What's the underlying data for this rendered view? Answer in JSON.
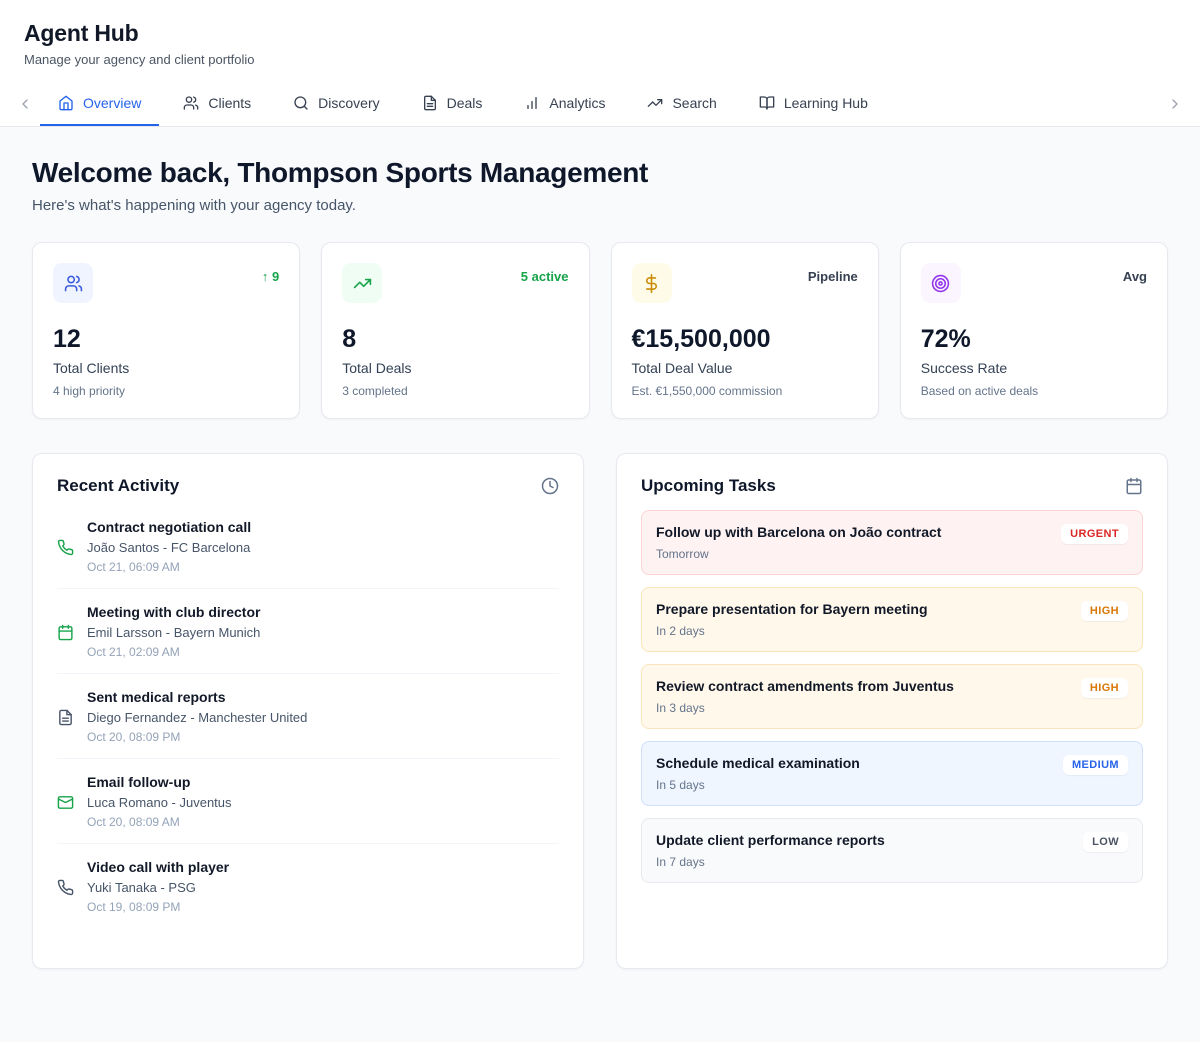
{
  "header": {
    "title": "Agent Hub",
    "subtitle": "Manage your agency and client portfolio"
  },
  "tabs": [
    {
      "label": "Overview",
      "icon": "home",
      "active": true
    },
    {
      "label": "Clients",
      "icon": "users",
      "active": false
    },
    {
      "label": "Discovery",
      "icon": "search",
      "active": false
    },
    {
      "label": "Deals",
      "icon": "file-text",
      "active": false
    },
    {
      "label": "Analytics",
      "icon": "bar-chart",
      "active": false
    },
    {
      "label": "Search",
      "icon": "trending-up",
      "active": false
    },
    {
      "label": "Learning Hub",
      "icon": "book-open",
      "active": false
    }
  ],
  "welcome": {
    "title": "Welcome back, Thompson Sports Management",
    "subtitle": "Here's what's happening with your agency today."
  },
  "stats": [
    {
      "icon": "users",
      "icon_bg": "#eff4ff",
      "icon_color": "#3b5bdb",
      "badge": "↑ 9",
      "badge_color": "#16a34a",
      "value": "12",
      "label": "Total Clients",
      "sub": "4 high priority"
    },
    {
      "icon": "trending-up",
      "icon_bg": "#f0fdf4",
      "icon_color": "#16a34a",
      "badge": "5 active",
      "badge_color": "#16a34a",
      "value": "8",
      "label": "Total Deals",
      "sub": "3 completed"
    },
    {
      "icon": "dollar-sign",
      "icon_bg": "#fefce8",
      "icon_color": "#ca8a04",
      "badge": "Pipeline",
      "badge_color": "#374151",
      "value": "€15,500,000",
      "label": "Total Deal Value",
      "sub": "Est. €1,550,000 commission"
    },
    {
      "icon": "target",
      "icon_bg": "#faf5ff",
      "icon_color": "#9333ea",
      "badge": "Avg",
      "badge_color": "#374151",
      "value": "72%",
      "label": "Success Rate",
      "sub": "Based on active deals"
    }
  ],
  "recent_activity": {
    "title": "Recent Activity",
    "header_icon": "clock",
    "items": [
      {
        "icon": "phone",
        "icon_color": "#16a34a",
        "title": "Contract negotiation call",
        "subtitle": "João Santos - FC Barcelona",
        "time": "Oct 21, 06:09 AM"
      },
      {
        "icon": "calendar",
        "icon_color": "#16a34a",
        "title": "Meeting with club director",
        "subtitle": "Emil Larsson - Bayern Munich",
        "time": "Oct 21, 02:09 AM"
      },
      {
        "icon": "file-text",
        "icon_color": "#475569",
        "title": "Sent medical reports",
        "subtitle": "Diego Fernandez - Manchester United",
        "time": "Oct 20, 08:09 PM"
      },
      {
        "icon": "mail",
        "icon_color": "#16a34a",
        "title": "Email follow-up",
        "subtitle": "Luca Romano - Juventus",
        "time": "Oct 20, 08:09 AM"
      },
      {
        "icon": "phone",
        "icon_color": "#475569",
        "title": "Video call with player",
        "subtitle": "Yuki Tanaka - PSG",
        "time": "Oct 19, 08:09 PM"
      }
    ]
  },
  "upcoming_tasks": {
    "title": "Upcoming Tasks",
    "header_icon": "calendar",
    "items": [
      {
        "title": "Follow up with Barcelona on João contract",
        "due": "Tomorrow",
        "priority": "URGENT"
      },
      {
        "title": "Prepare presentation for Bayern meeting",
        "due": "In 2 days",
        "priority": "HIGH"
      },
      {
        "title": "Review contract amendments from Juventus",
        "due": "In 3 days",
        "priority": "HIGH"
      },
      {
        "title": "Schedule medical examination",
        "due": "In 5 days",
        "priority": "MEDIUM"
      },
      {
        "title": "Update client performance reports",
        "due": "In 7 days",
        "priority": "LOW"
      }
    ]
  },
  "priority_styles": {
    "URGENT": {
      "bg": "#fef2f2",
      "border": "#fbd5d5",
      "text": "#dc2626"
    },
    "HIGH": {
      "bg": "#fff8eb",
      "border": "#fbe5bd",
      "text": "#d97706"
    },
    "MEDIUM": {
      "bg": "#eff6ff",
      "border": "#cfe0fb",
      "text": "#2563eb"
    },
    "LOW": {
      "bg": "#f9fafb",
      "border": "#e7e9ee",
      "text": "#4b5563"
    }
  },
  "colors": {
    "accent": "#2563eb",
    "positive": "#16a34a",
    "page_bg": "#f8fafc"
  }
}
